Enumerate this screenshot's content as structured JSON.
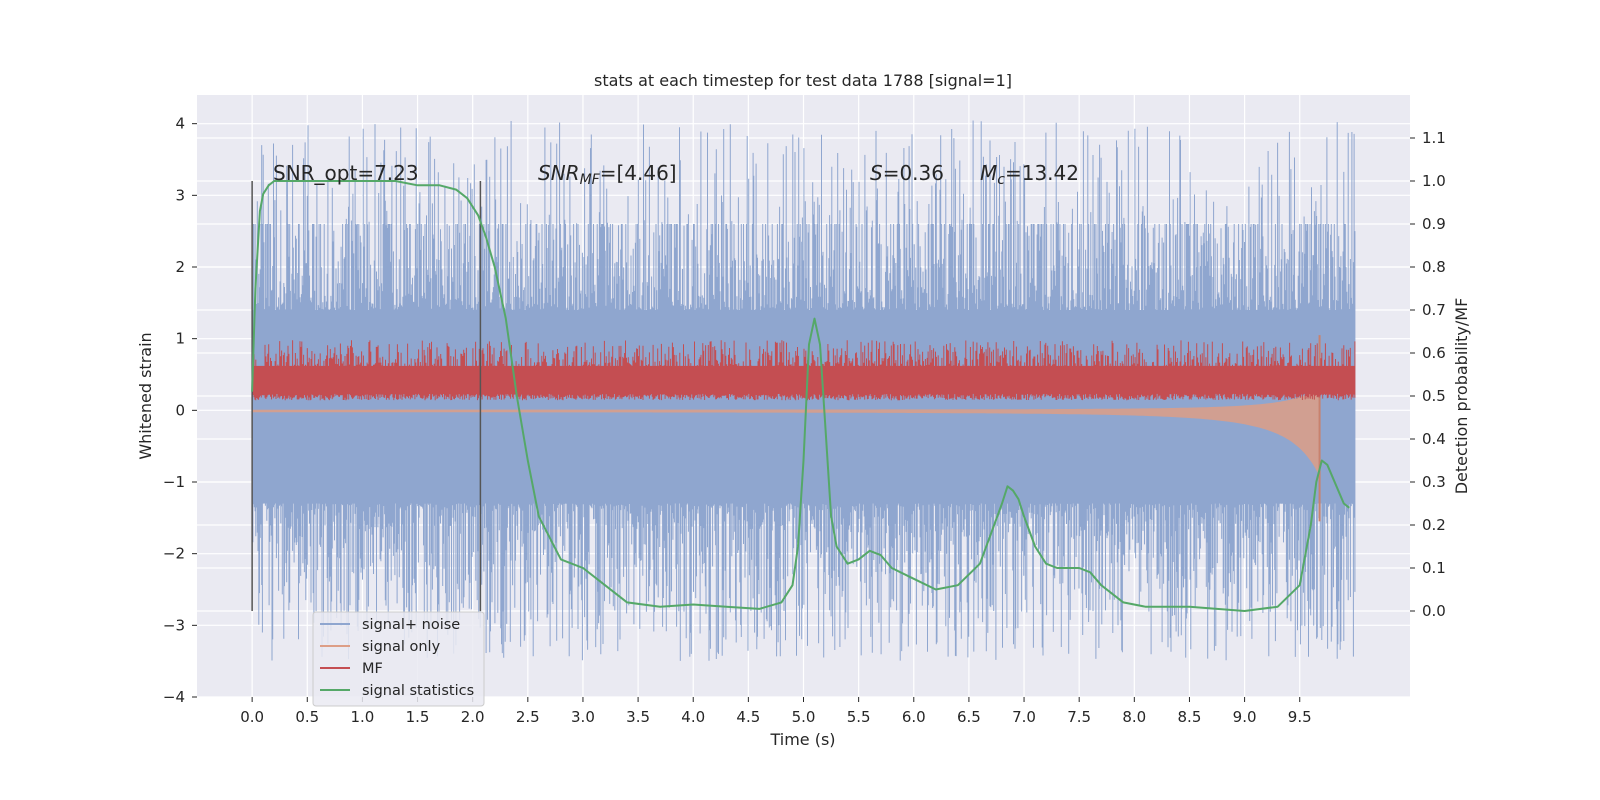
{
  "chart_data": {
    "type": "line",
    "title": "stats at each timestep for test data 1788 [signal=1]",
    "xlabel": "Time (s)",
    "ylabel_left": "Whitened strain",
    "ylabel_right": "Detection probability/MF",
    "xlim": [
      -0.5,
      10.5
    ],
    "ylim_left": [
      -4,
      4.4
    ],
    "ylim_right": [
      -0.2,
      1.2
    ],
    "xticks": [
      0.0,
      0.5,
      1.0,
      1.5,
      2.0,
      2.5,
      3.0,
      3.5,
      4.0,
      4.5,
      5.0,
      5.5,
      6.0,
      6.5,
      7.0,
      7.5,
      8.0,
      8.5,
      9.0,
      9.5
    ],
    "xtick_labels": [
      "0.0",
      "0.5",
      "1.0",
      "1.5",
      "2.0",
      "2.5",
      "3.0",
      "3.5",
      "4.0",
      "4.5",
      "5.0",
      "5.5",
      "6.0",
      "6.5",
      "7.0",
      "7.5",
      "8.0",
      "8.5",
      "9.0",
      "9.5"
    ],
    "yticks_left": [
      -4,
      -3,
      -2,
      -1,
      0,
      1,
      2,
      3,
      4
    ],
    "ytick_labels_left": [
      "−4",
      "−3",
      "−2",
      "−1",
      "0",
      "1",
      "2",
      "3",
      "4"
    ],
    "yticks_right": [
      0.0,
      0.1,
      0.2,
      0.3,
      0.4,
      0.5,
      0.6,
      0.7,
      0.8,
      0.9,
      1.0,
      1.1
    ],
    "ytick_labels_right": [
      "0.0",
      "0.1",
      "0.2",
      "0.3",
      "0.4",
      "0.5",
      "0.6",
      "0.7",
      "0.8",
      "0.9",
      "1.0",
      "1.1"
    ],
    "grid": true,
    "legend_position": "lower-left",
    "annotations": {
      "snr_opt": "SNR_opt=7.23",
      "snr_mf_main": "SNR",
      "snr_mf_sub": "MF",
      "snr_mf_value": "=[4.46]",
      "s_main": "S",
      "s_value": "=0.36",
      "mc_main": "M",
      "mc_sub": "c",
      "mc_value": "=13.42"
    },
    "vertical_lines": [
      {
        "x": 0.0,
        "y": [
          -2.8,
          3.2
        ]
      },
      {
        "x": 2.07,
        "y": [
          -2.8,
          3.2
        ]
      }
    ],
    "series": [
      {
        "name": "signal+ noise",
        "color": "#8fa6cf",
        "axis": "left",
        "style": "dense-noise",
        "x_range": [
          0.0,
          10.0
        ],
        "core_band": [
          -1.3,
          1.4
        ],
        "peak_range": [
          -3.5,
          4.05
        ]
      },
      {
        "name": "signal only",
        "color": "#dd9e86",
        "axis": "left",
        "style": "chirp",
        "x_range": [
          0.0,
          9.7
        ],
        "merger_time": 9.68,
        "peak_amplitude": [
          -1.55,
          1.05
        ]
      },
      {
        "name": "MF",
        "color": "#c44e52",
        "axis": "right",
        "style": "dense-noise",
        "x_range": [
          0.0,
          10.0
        ],
        "band": [
          0.49,
          0.66
        ],
        "peak": 0.63
      },
      {
        "name": "signal statistics",
        "color": "#55a868",
        "axis": "right",
        "style": "line",
        "x": [
          0.0,
          0.03,
          0.07,
          0.1,
          0.15,
          0.2,
          0.3,
          0.5,
          0.8,
          1.0,
          1.3,
          1.5,
          1.7,
          1.85,
          1.95,
          2.05,
          2.12,
          2.2,
          2.3,
          2.4,
          2.5,
          2.6,
          2.8,
          3.0,
          3.2,
          3.4,
          3.7,
          4.0,
          4.3,
          4.6,
          4.8,
          4.9,
          4.95,
          5.0,
          5.05,
          5.1,
          5.15,
          5.2,
          5.25,
          5.3,
          5.4,
          5.5,
          5.6,
          5.7,
          5.8,
          6.0,
          6.2,
          6.4,
          6.6,
          6.7,
          6.8,
          6.85,
          6.9,
          6.95,
          7.0,
          7.1,
          7.2,
          7.3,
          7.4,
          7.5,
          7.6,
          7.7,
          7.9,
          8.1,
          8.5,
          9.0,
          9.3,
          9.5,
          9.6,
          9.65,
          9.7,
          9.75,
          9.8,
          9.9,
          9.95
        ],
        "y": [
          0.51,
          0.75,
          0.93,
          0.97,
          0.99,
          1.0,
          1.0,
          1.0,
          1.0,
          1.0,
          1.0,
          0.99,
          0.99,
          0.98,
          0.96,
          0.92,
          0.87,
          0.8,
          0.68,
          0.5,
          0.35,
          0.22,
          0.12,
          0.1,
          0.06,
          0.02,
          0.01,
          0.015,
          0.01,
          0.005,
          0.02,
          0.06,
          0.15,
          0.35,
          0.62,
          0.68,
          0.62,
          0.42,
          0.22,
          0.15,
          0.11,
          0.12,
          0.14,
          0.13,
          0.1,
          0.075,
          0.05,
          0.06,
          0.11,
          0.18,
          0.25,
          0.29,
          0.28,
          0.26,
          0.22,
          0.15,
          0.11,
          0.1,
          0.1,
          0.1,
          0.09,
          0.06,
          0.02,
          0.01,
          0.01,
          0.0,
          0.01,
          0.06,
          0.2,
          0.3,
          0.35,
          0.34,
          0.31,
          0.25,
          0.24
        ]
      }
    ]
  }
}
